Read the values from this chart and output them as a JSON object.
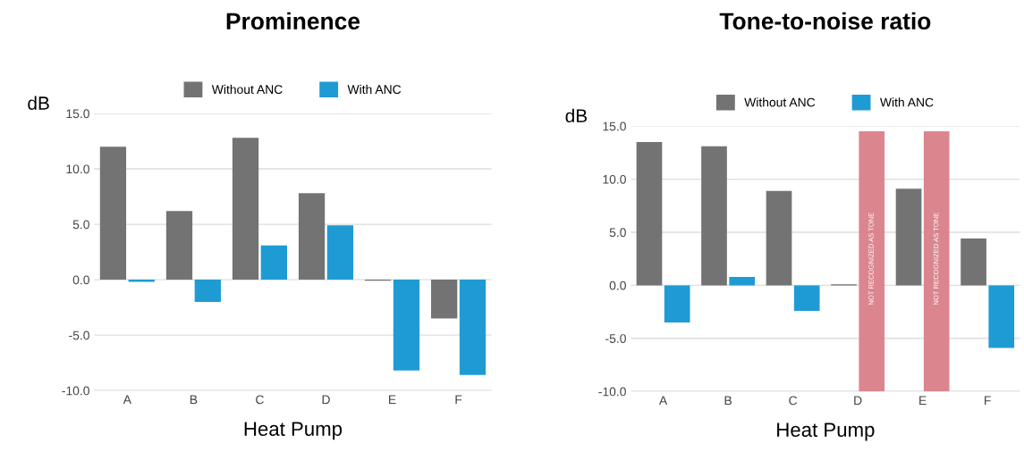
{
  "chart_data": [
    {
      "type": "bar",
      "title": "Prominence",
      "xlabel": "Heat Pump",
      "ylabel": "dB",
      "categories": [
        "A",
        "B",
        "C",
        "D",
        "E",
        "F"
      ],
      "series": [
        {
          "name": "Without ANC",
          "color": "#737373",
          "values": [
            12.0,
            6.2,
            12.8,
            7.8,
            -0.1,
            -3.5
          ]
        },
        {
          "name": "With ANC",
          "color": "#1f9bd4",
          "values": [
            -0.2,
            -2.0,
            3.1,
            4.9,
            -8.2,
            -8.6
          ]
        }
      ],
      "ylim": [
        -10,
        15
      ],
      "yticks": [
        {
          "value": -10,
          "label": "-10.0"
        },
        {
          "value": -5,
          "label": "-5.0"
        },
        {
          "value": 0,
          "label": "0.0"
        },
        {
          "value": 5,
          "label": "5.0"
        },
        {
          "value": 10,
          "label": "10.0"
        },
        {
          "value": 15,
          "label": "15.0"
        }
      ],
      "grid": "y",
      "legend": "top"
    },
    {
      "type": "bar",
      "title": "Tone-to-noise ratio",
      "xlabel": "Heat Pump",
      "ylabel": "dB",
      "categories": [
        "A",
        "B",
        "C",
        "D",
        "E",
        "F"
      ],
      "series": [
        {
          "name": "Without ANC",
          "color": "#737373",
          "values": [
            13.5,
            13.1,
            8.9,
            0.1,
            9.1,
            4.4
          ]
        },
        {
          "name": "With ANC",
          "color": "#1f9bd4",
          "values": [
            -3.5,
            0.8,
            -2.4,
            null,
            null,
            -5.9
          ]
        }
      ],
      "bands": [
        {
          "axis": "x",
          "from": "D",
          "to": "D",
          "label": "NOT RECOGNIZED AS TONE",
          "color": "#d98088"
        },
        {
          "axis": "x",
          "from": "E",
          "to": "E",
          "label": "NOT RECOGNIZED AS TONE",
          "color": "#d98088"
        }
      ],
      "ylim": [
        -10,
        15
      ],
      "yticks": [
        {
          "value": -10,
          "label": "-10.0"
        },
        {
          "value": -5,
          "label": "-5.0"
        },
        {
          "value": 0,
          "label": "0.0"
        },
        {
          "value": 5,
          "label": "5.0"
        },
        {
          "value": 10,
          "label": "10.0"
        },
        {
          "value": 15,
          "label": "15.0"
        }
      ],
      "grid": "y",
      "legend": "top"
    }
  ]
}
